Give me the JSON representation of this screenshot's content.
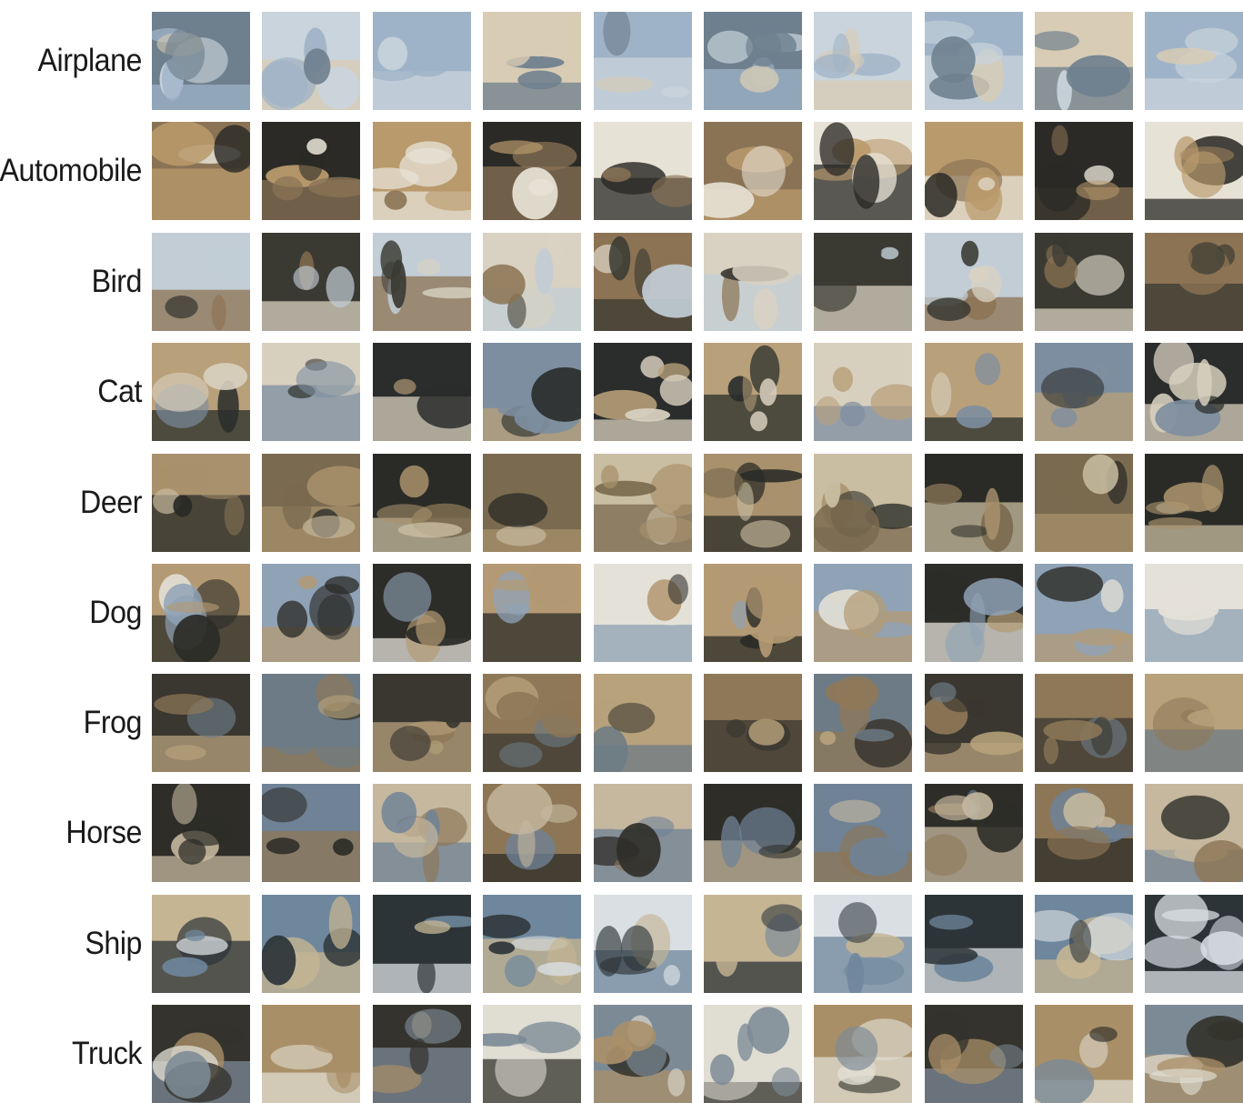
{
  "figure": {
    "rows": [
      {
        "label": "Airplane",
        "palette": [
          "#9fb3c8",
          "#c9d4dc",
          "#d8ccb4",
          "#6e7f8e"
        ]
      },
      {
        "label": "Automobile",
        "palette": [
          "#b99a6c",
          "#e7e2d6",
          "#2b2a26",
          "#8a7355"
        ]
      },
      {
        "label": "Bird",
        "palette": [
          "#c2cdd6",
          "#8c7353",
          "#3a3a33",
          "#d9d2c2"
        ]
      },
      {
        "label": "Cat",
        "palette": [
          "#b8a07a",
          "#2a2d2b",
          "#d8d0bf",
          "#7d8ea0"
        ]
      },
      {
        "label": "Deer",
        "palette": [
          "#a8916c",
          "#2a2b27",
          "#c9bda2",
          "#7a6a4f"
        ]
      },
      {
        "label": "Dog",
        "palette": [
          "#b49a74",
          "#2c2c28",
          "#e4e1d8",
          "#8fa2b6"
        ]
      },
      {
        "label": "Frog",
        "palette": [
          "#8e7858",
          "#3a3730",
          "#b7a27c",
          "#6d7b86"
        ]
      },
      {
        "label": "Horse",
        "palette": [
          "#8d7656",
          "#2e2d28",
          "#c5b89f",
          "#6f8296"
        ]
      },
      {
        "label": "Ship",
        "palette": [
          "#6f879c",
          "#c5b593",
          "#2d3438",
          "#d9dfe3"
        ]
      },
      {
        "label": "Truck",
        "palette": [
          "#a98f68",
          "#e0ddd2",
          "#34332d",
          "#7c8a96"
        ]
      }
    ]
  }
}
